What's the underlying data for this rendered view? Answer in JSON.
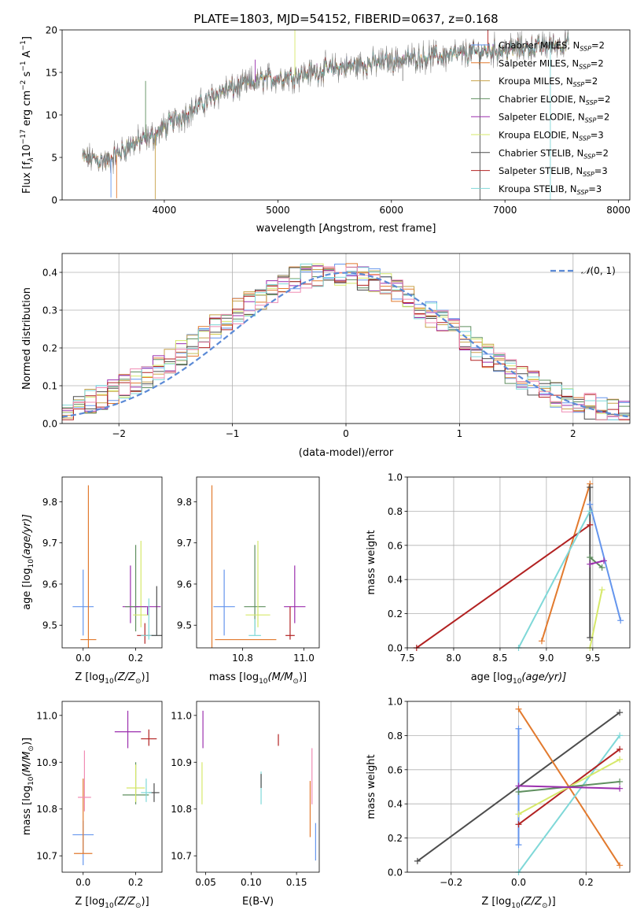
{
  "figure": {
    "title": "PLATE=1803, MJD=54152, FIBERID=0637, z=0.168"
  },
  "legend_common": {
    "models": [
      {
        "label": "Chabrier MILES, N",
        "nssp": "2",
        "color": "#6495ed"
      },
      {
        "label": "Salpeter MILES, N",
        "nssp": "2",
        "color": "#e27a2e"
      },
      {
        "label": "Kroupa MILES, N",
        "nssp": "2",
        "color": "#c8a24a"
      },
      {
        "label": "Chabrier ELODIE, N",
        "nssp": "2",
        "color": "#5f8f5f"
      },
      {
        "label": "Salpeter ELODIE, N",
        "nssp": "2",
        "color": "#9b2fae"
      },
      {
        "label": "Kroupa ELODIE, N",
        "nssp": "3",
        "color": "#d6e86a"
      },
      {
        "label": "Chabrier STELIB, N",
        "nssp": "2",
        "color": "#4d4d4d"
      },
      {
        "label": "Salpeter STELIB, N",
        "nssp": "3",
        "color": "#b22222"
      },
      {
        "label": "Kroupa STELIB, N",
        "nssp": "3",
        "color": "#7fd8d8"
      }
    ],
    "ssp_sub": "SSP",
    "nssp_eq": "="
  },
  "chart_data": [
    {
      "id": "spectrum",
      "type": "line",
      "xlabel": "wavelength [Angstrom, rest frame]",
      "ylabel_main": "Flux [f",
      "ylabel_parts": [
        "λ",
        "10",
        "−17",
        " erg cm",
        "−2",
        " s",
        "−1",
        " A",
        "−1",
        "]"
      ],
      "xlim": [
        3100,
        8100
      ],
      "ylim": [
        0,
        20
      ],
      "xticks": [
        4000,
        5000,
        6000,
        7000,
        8000
      ],
      "yticks": [
        0,
        5,
        10,
        15,
        20
      ],
      "x_range_data": [
        3280,
        7560
      ],
      "continuum_points": [
        [
          3280,
          5.0
        ],
        [
          3500,
          4.5
        ],
        [
          3700,
          6.5
        ],
        [
          3900,
          7.5
        ],
        [
          4100,
          9.5
        ],
        [
          4300,
          11.0
        ],
        [
          4500,
          12.8
        ],
        [
          4700,
          13.5
        ],
        [
          4900,
          14.2
        ],
        [
          5100,
          14.5
        ],
        [
          5300,
          15.0
        ],
        [
          5500,
          15.5
        ],
        [
          5700,
          15.8
        ],
        [
          5900,
          16.2
        ],
        [
          6100,
          16.5
        ],
        [
          6300,
          16.8
        ],
        [
          6500,
          17.0
        ],
        [
          6700,
          17.3
        ],
        [
          6900,
          17.6
        ],
        [
          7100,
          17.8
        ],
        [
          7300,
          18.0
        ],
        [
          7560,
          18.5
        ]
      ],
      "spikes": [
        [
          3530,
          0.3
        ],
        [
          3580,
          0.2
        ],
        [
          3920,
          0.1
        ],
        [
          3835,
          14.0
        ],
        [
          4800,
          16.5
        ],
        [
          5150,
          20.0
        ],
        [
          6780,
          0.0
        ],
        [
          6850,
          20.0
        ],
        [
          7400,
          0.0
        ],
        [
          6100,
          14.0
        ]
      ]
    },
    {
      "id": "residuals",
      "type": "histogram",
      "xlabel": "(data-model)/error",
      "ylabel": "Normed distribution",
      "xlim": [
        -2.5,
        2.5
      ],
      "ylim": [
        0,
        0.45
      ],
      "xticks": [
        -2,
        -1,
        0,
        1,
        2
      ],
      "yticks": [
        0.0,
        0.1,
        0.2,
        0.3,
        0.4
      ],
      "grid": true,
      "bin_width": 0.1,
      "legend": {
        "label": "(0, 1)",
        "script_N": "𝒩",
        "position": "upper-right"
      },
      "gaussian": {
        "mean": 0,
        "sigma": 1
      }
    },
    {
      "id": "age-vs-Z",
      "type": "scatter-errorbar",
      "xlabel": "Z [log",
      "xlabel_tail": "(Z/Z",
      "ylabel": "age  [log",
      "ylabel_tail": "(age/yr)]",
      "xlim": [
        -0.08,
        0.3
      ],
      "ylim": [
        9.445,
        9.86
      ],
      "xticks": [
        0.0,
        0.2
      ],
      "yticks": [
        9.5,
        9.6,
        9.7,
        9.8
      ],
      "points": [
        {
          "x": 0.0,
          "y": 9.545,
          "xe": 0.04,
          "ye_lo": 0.07,
          "ye_hi": 0.09,
          "c": "#6495ed"
        },
        {
          "x": 0.02,
          "y": 9.465,
          "xe": 0.03,
          "ye_lo": 0.02,
          "ye_hi": 0.375,
          "c": "#e27a2e"
        },
        {
          "x": 0.18,
          "y": 9.545,
          "xe": 0.03,
          "ye_lo": 0.04,
          "ye_hi": 0.1,
          "c": "#9b2fae"
        },
        {
          "x": 0.2,
          "y": 9.545,
          "xe": 0.04,
          "ye_lo": 0.06,
          "ye_hi": 0.15,
          "c": "#5f8f5f"
        },
        {
          "x": 0.22,
          "y": 9.525,
          "xe": 0.03,
          "ye_lo": 0.03,
          "ye_hi": 0.18,
          "c": "#d6e86a"
        },
        {
          "x": 0.245,
          "y": 9.545,
          "xe": 0.05,
          "ye_lo": 0.02,
          "ye_hi": 0.0,
          "c": "#9b2fae"
        },
        {
          "x": 0.235,
          "y": 9.475,
          "xe": 0.03,
          "ye_lo": 0.02,
          "ye_hi": 0.03,
          "c": "#b22222"
        },
        {
          "x": 0.25,
          "y": 9.475,
          "xe": 0.03,
          "ye_lo": 0.01,
          "ye_hi": 0.09,
          "c": "#7fd8d8"
        },
        {
          "x": 0.28,
          "y": 9.475,
          "xe": 0.02,
          "ye_lo": 0.0,
          "ye_hi": 0.12,
          "c": "#4d4d4d"
        }
      ]
    },
    {
      "id": "age-vs-mass",
      "type": "scatter-errorbar",
      "xlabel": "mass [log",
      "xlabel_tail": "(M/M",
      "xlim": [
        10.65,
        11.05
      ],
      "ylim": [
        9.445,
        9.86
      ],
      "xticks": [
        10.8,
        11.0
      ],
      "yticks": [
        9.5,
        9.6,
        9.7,
        9.8
      ],
      "points": [
        {
          "x": 10.74,
          "y": 9.545,
          "xe": 0.035,
          "ye_lo": 0.07,
          "ye_hi": 0.09,
          "c": "#6495ed"
        },
        {
          "x": 10.7,
          "y": 9.465,
          "xe": 0.0,
          "ye_lo": 0.02,
          "ye_hi": 0.375,
          "c": "#e27a2e"
        },
        {
          "x": 10.81,
          "y": 9.465,
          "xe": 0.1,
          "ye_lo": 0.0,
          "ye_hi": 0.0,
          "c": "#e27a2e"
        },
        {
          "x": 10.84,
          "y": 9.545,
          "xe": 0.035,
          "ye_lo": 0.06,
          "ye_hi": 0.15,
          "c": "#5f8f5f"
        },
        {
          "x": 10.85,
          "y": 9.525,
          "xe": 0.04,
          "ye_lo": 0.03,
          "ye_hi": 0.18,
          "c": "#d6e86a"
        },
        {
          "x": 10.84,
          "y": 9.475,
          "xe": 0.02,
          "ye_lo": 0.0,
          "ye_hi": 0.04,
          "c": "#7fd8d8"
        },
        {
          "x": 10.97,
          "y": 9.545,
          "xe": 0.035,
          "ye_lo": 0.04,
          "ye_hi": 0.1,
          "c": "#9b2fae"
        },
        {
          "x": 10.955,
          "y": 9.475,
          "xe": 0.015,
          "ye_lo": 0.01,
          "ye_hi": 0.07,
          "c": "#b22222"
        }
      ]
    },
    {
      "id": "weight-vs-age",
      "type": "line",
      "xlabel": "age  [log",
      "xlabel_tail": "(age/yr)]",
      "ylabel": "mass weight",
      "xlim": [
        7.5,
        9.9
      ],
      "ylim": [
        0,
        1
      ],
      "xticks": [
        7.5,
        8.0,
        8.5,
        9.0,
        9.5
      ],
      "yticks": [
        0.0,
        0.2,
        0.4,
        0.6,
        0.8,
        1.0
      ],
      "grid": true,
      "series": [
        {
          "c": "#6495ed",
          "pts": [
            [
              9.47,
              0.84
            ],
            [
              9.8,
              0.16
            ]
          ]
        },
        {
          "c": "#e27a2e",
          "pts": [
            [
              8.95,
              0.04
            ],
            [
              9.47,
              0.96
            ]
          ]
        },
        {
          "c": "#b22222",
          "pts": [
            [
              7.6,
              0.0
            ],
            [
              9.47,
              0.72
            ]
          ]
        },
        {
          "c": "#7fd8d8",
          "pts": [
            [
              8.7,
              0.0
            ],
            [
              9.47,
              0.8
            ]
          ]
        },
        {
          "c": "#5f8f5f",
          "pts": [
            [
              9.47,
              0.53
            ],
            [
              9.6,
              0.47
            ]
          ]
        },
        {
          "c": "#9b2fae",
          "pts": [
            [
              9.47,
              0.49
            ],
            [
              9.62,
              0.51
            ]
          ]
        },
        {
          "c": "#d6e86a",
          "pts": [
            [
              9.47,
              0.0
            ],
            [
              9.6,
              0.34
            ]
          ]
        },
        {
          "c": "#4d4d4d",
          "pts": [
            [
              9.47,
              0.06
            ],
            [
              9.47,
              0.94
            ]
          ]
        }
      ]
    },
    {
      "id": "mass-vs-Z",
      "type": "scatter-errorbar",
      "xlabel": "Z [log",
      "xlabel_tail": "(Z/Z",
      "ylabel": "mass [log",
      "ylabel_tail": "(M/M",
      "xlim": [
        -0.08,
        0.3
      ],
      "ylim": [
        10.665,
        11.03
      ],
      "xticks": [
        0.0,
        0.2
      ],
      "yticks": [
        10.7,
        10.8,
        10.9,
        11.0
      ],
      "points": [
        {
          "x": 0.0,
          "y": 10.745,
          "xe": 0.04,
          "ye_lo": 0.065,
          "ye_hi": 0.03,
          "c": "#6495ed"
        },
        {
          "x": 0.0,
          "y": 10.705,
          "xe": 0.035,
          "ye_lo": 0.0,
          "ye_hi": 0.16,
          "c": "#e27a2e"
        },
        {
          "x": 0.005,
          "y": 10.825,
          "xe": 0.025,
          "ye_lo": 0.03,
          "ye_hi": 0.1,
          "c": "#f08cb4"
        },
        {
          "x": 0.17,
          "y": 10.965,
          "xe": 0.05,
          "ye_lo": 0.035,
          "ye_hi": 0.045,
          "c": "#9b2fae"
        },
        {
          "x": 0.25,
          "y": 10.95,
          "xe": 0.03,
          "ye_lo": 0.015,
          "ye_hi": 0.02,
          "c": "#b22222"
        },
        {
          "x": 0.2,
          "y": 10.83,
          "xe": 0.05,
          "ye_lo": 0.02,
          "ye_hi": 0.07,
          "c": "#5f8f5f"
        },
        {
          "x": 0.2,
          "y": 10.845,
          "xe": 0.035,
          "ye_lo": 0.03,
          "ye_hi": 0.05,
          "c": "#d6e86a"
        },
        {
          "x": 0.27,
          "y": 10.835,
          "xe": 0.02,
          "ye_lo": 0.02,
          "ye_hi": 0.02,
          "c": "#4d4d4d"
        },
        {
          "x": 0.24,
          "y": 10.835,
          "xe": 0.02,
          "ye_lo": 0.02,
          "ye_hi": 0.03,
          "c": "#7fd8d8"
        }
      ]
    },
    {
      "id": "mass-vs-ebv",
      "type": "scatter-errorbar",
      "xlabel": "E(B-V)",
      "xlim": [
        0.04,
        0.175
      ],
      "ylim": [
        10.665,
        11.03
      ],
      "xticks": [
        0.05,
        0.1,
        0.15
      ],
      "yticks": [
        10.7,
        10.8,
        10.9,
        11.0
      ],
      "points": [
        {
          "x": 0.047,
          "y": 10.97,
          "xe": 0.0,
          "ye_lo": 0.04,
          "ye_hi": 0.04,
          "c": "#9b2fae"
        },
        {
          "x": 0.046,
          "y": 10.86,
          "xe": 0.0,
          "ye_lo": 0.05,
          "ye_hi": 0.04,
          "c": "#d6e86a"
        },
        {
          "x": 0.111,
          "y": 10.845,
          "xe": 0.0,
          "ye_lo": 0.035,
          "ye_hi": 0.035,
          "c": "#7fd8d8"
        },
        {
          "x": 0.111,
          "y": 10.845,
          "xe": 0.0,
          "ye_lo": 0.0,
          "ye_hi": 0.03,
          "c": "#4d4d4d"
        },
        {
          "x": 0.13,
          "y": 10.95,
          "xe": 0.0,
          "ye_lo": 0.015,
          "ye_hi": 0.01,
          "c": "#b22222"
        },
        {
          "x": 0.165,
          "y": 10.82,
          "xe": 0.0,
          "ye_lo": 0.08,
          "ye_hi": 0.04,
          "c": "#e27a2e"
        },
        {
          "x": 0.167,
          "y": 10.86,
          "xe": 0.0,
          "ye_lo": 0.05,
          "ye_hi": 0.07,
          "c": "#f08cb4"
        },
        {
          "x": 0.171,
          "y": 10.73,
          "xe": 0.0,
          "ye_lo": 0.04,
          "ye_hi": 0.04,
          "c": "#6495ed"
        }
      ]
    },
    {
      "id": "weight-vs-Z",
      "type": "line",
      "xlabel": "Z [log",
      "xlabel_tail": "(Z/Z",
      "ylabel": "mass weight",
      "xlim": [
        -0.33,
        0.33
      ],
      "ylim": [
        0,
        1
      ],
      "xticks": [
        -0.2,
        0.0,
        0.2
      ],
      "yticks": [
        0.0,
        0.2,
        0.4,
        0.6,
        0.8,
        1.0
      ],
      "grid": true,
      "series": [
        {
          "c": "#4d4d4d",
          "pts": [
            [
              -0.3,
              0.065
            ],
            [
              0.3,
              0.935
            ]
          ]
        },
        {
          "c": "#e27a2e",
          "pts": [
            [
              0.0,
              0.955
            ],
            [
              0.3,
              0.04
            ]
          ]
        },
        {
          "c": "#6495ed",
          "pts": [
            [
              0.0,
              0.84
            ],
            [
              0.0,
              0.16
            ]
          ]
        },
        {
          "c": "#7fd8d8",
          "pts": [
            [
              0.0,
              0.0
            ],
            [
              0.3,
              0.8
            ]
          ]
        },
        {
          "c": "#b22222",
          "pts": [
            [
              0.0,
              0.28
            ],
            [
              0.3,
              0.72
            ]
          ]
        },
        {
          "c": "#d6e86a",
          "pts": [
            [
              0.0,
              0.34
            ],
            [
              0.3,
              0.66
            ]
          ]
        },
        {
          "c": "#5f8f5f",
          "pts": [
            [
              0.0,
              0.47
            ],
            [
              0.3,
              0.53
            ]
          ]
        },
        {
          "c": "#9b2fae",
          "pts": [
            [
              0.0,
              0.505
            ],
            [
              0.3,
              0.49
            ]
          ]
        }
      ]
    }
  ]
}
